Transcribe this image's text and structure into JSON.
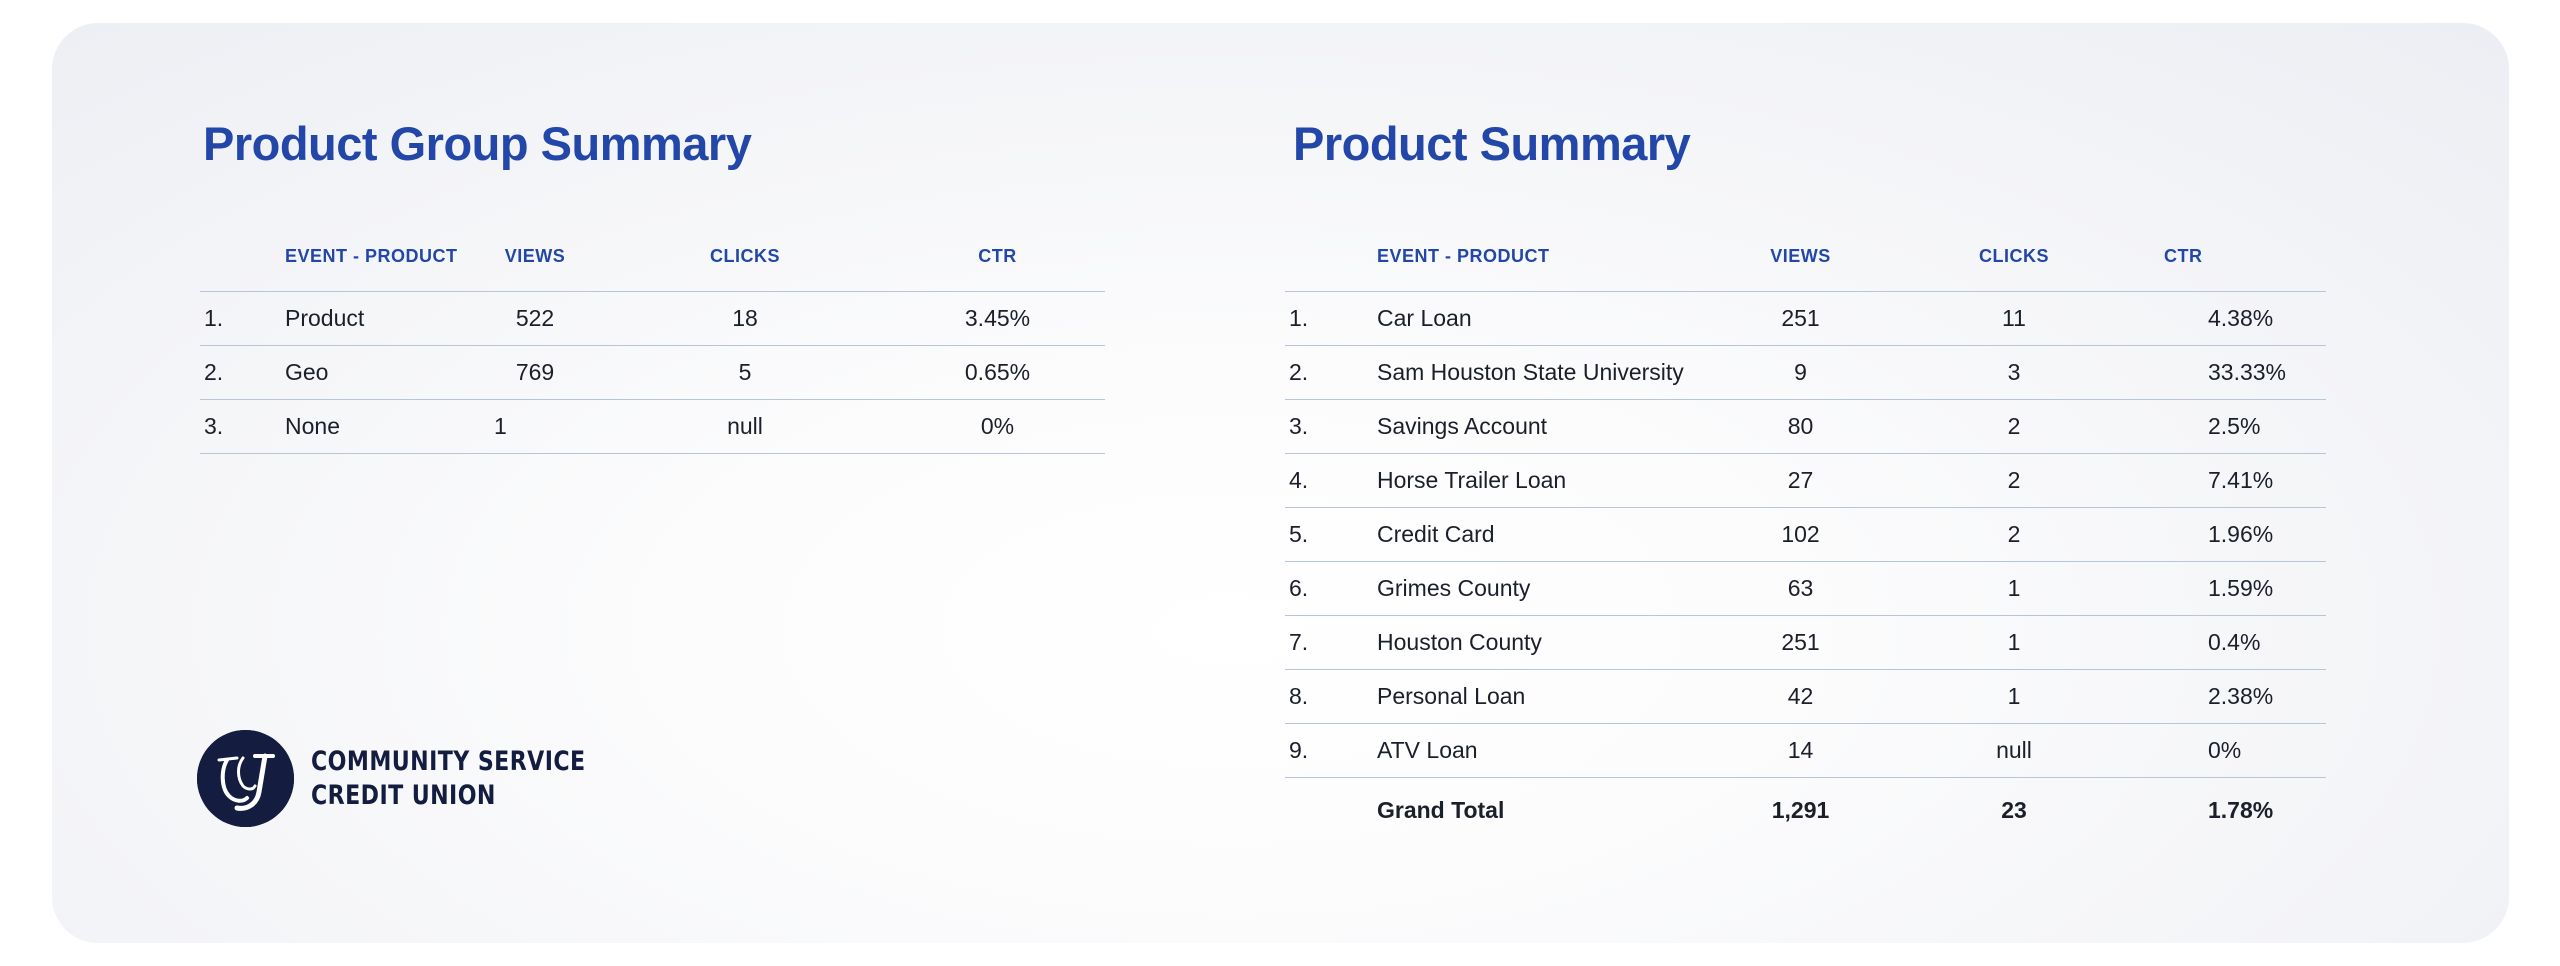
{
  "product_group_summary": {
    "title": "Product Group Summary",
    "columns": [
      "EVENT - PRODUCT",
      "VIEWS",
      "CLICKS",
      "CTR"
    ],
    "rows": [
      {
        "num": "1.",
        "name": "Product",
        "views": "522",
        "clicks": "18",
        "ctr": "3.45%"
      },
      {
        "num": "2.",
        "name": "Geo",
        "views": "769",
        "clicks": "5",
        "ctr": "0.65%"
      },
      {
        "num": "3.",
        "name": "None",
        "views": "1",
        "clicks": "null",
        "ctr": "0%"
      }
    ]
  },
  "product_summary": {
    "title": "Product Summary",
    "columns": [
      "EVENT - PRODUCT",
      "VIEWS",
      "CLICKS",
      "CTR"
    ],
    "rows": [
      {
        "num": "1.",
        "name": "Car Loan",
        "views": "251",
        "clicks": "11",
        "ctr": "4.38%"
      },
      {
        "num": "2.",
        "name": "Sam Houston State University",
        "views": "9",
        "clicks": "3",
        "ctr": "33.33%"
      },
      {
        "num": "3.",
        "name": "Savings Account",
        "views": "80",
        "clicks": "2",
        "ctr": "2.5%"
      },
      {
        "num": "4.",
        "name": "Horse Trailer Loan",
        "views": "27",
        "clicks": "2",
        "ctr": "7.41%"
      },
      {
        "num": "5.",
        "name": "Credit Card",
        "views": "102",
        "clicks": "2",
        "ctr": "1.96%"
      },
      {
        "num": "6.",
        "name": "Grimes County",
        "views": "63",
        "clicks": "1",
        "ctr": "1.59%"
      },
      {
        "num": "7.",
        "name": "Houston County",
        "views": "251",
        "clicks": "1",
        "ctr": "0.4%"
      },
      {
        "num": "8.",
        "name": "Personal Loan",
        "views": "42",
        "clicks": "1",
        "ctr": "2.38%"
      },
      {
        "num": "9.",
        "name": "ATV Loan",
        "views": "14",
        "clicks": "null",
        "ctr": "0%"
      }
    ],
    "total": {
      "label": "Grand Total",
      "views": "1,291",
      "clicks": "23",
      "ctr": "1.78%"
    }
  },
  "logo": {
    "line1": "COMMUNITY SERVICE",
    "line2": "CREDIT UNION",
    "monogram": "CSCU"
  },
  "colors": {
    "accent": "#2347a9",
    "text": "#1b1f2a",
    "logo": "#141d3f",
    "divider": "#b8c4da"
  }
}
